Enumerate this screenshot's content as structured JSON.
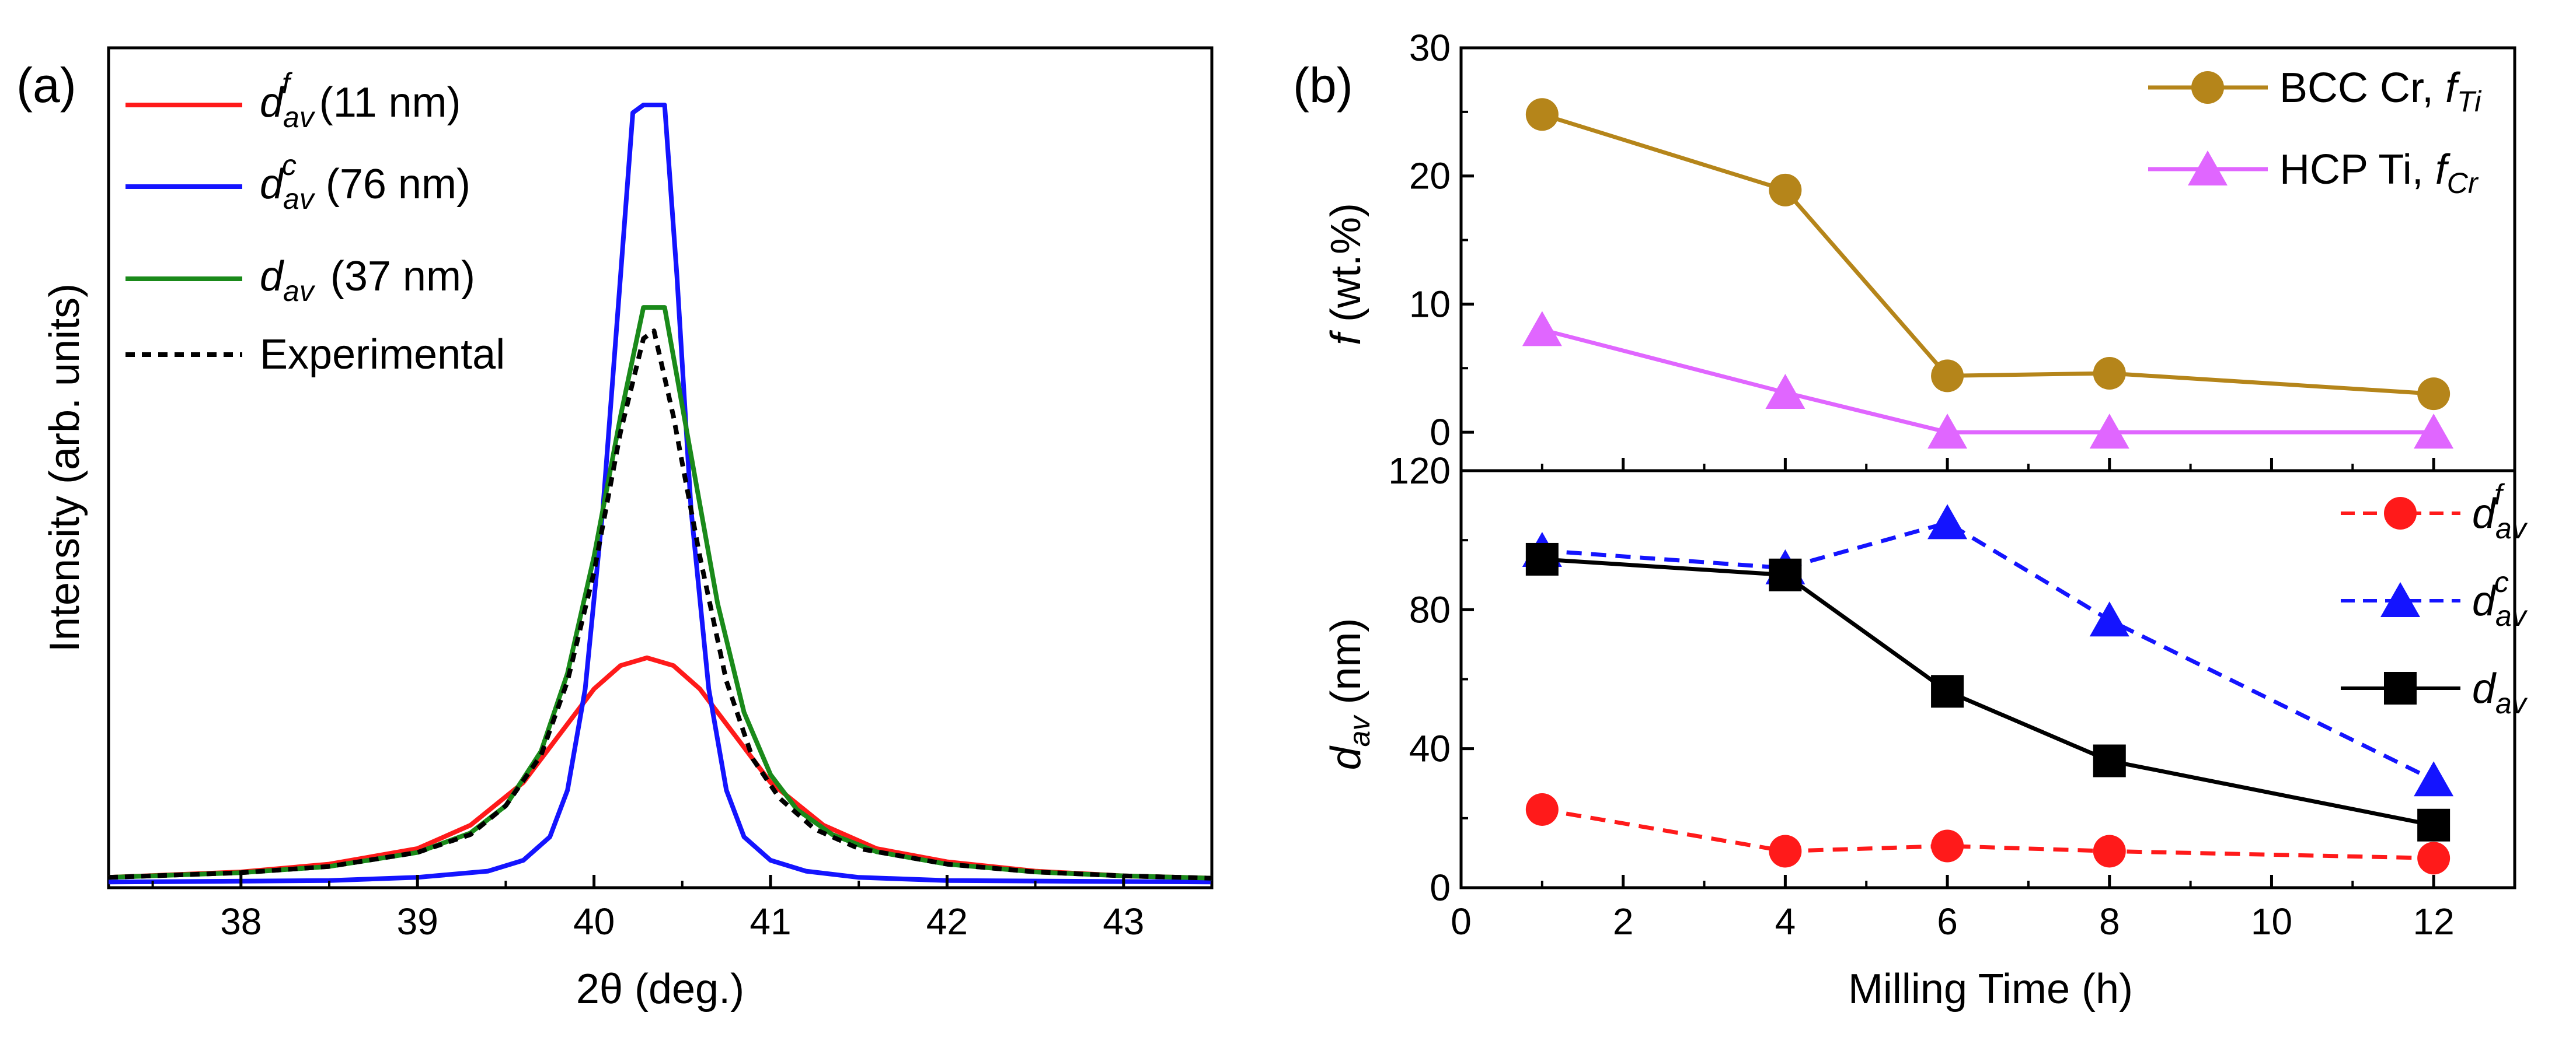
{
  "colors": {
    "red": "#ff1a1a",
    "blue": "#1414ff",
    "green": "#1a8a1a",
    "black": "#000000",
    "bcc": "#b5851a",
    "hcp": "#e066ff"
  },
  "chart_data": [
    {
      "panel_label": "(a)",
      "type": "line",
      "xlabel": "2θ (deg.)",
      "ylabel": "Intensity (arb. units)",
      "xlim": [
        37.25,
        43.5
      ],
      "ylim": [
        0,
        1.0
      ],
      "xticks": [
        38,
        39,
        40,
        41,
        42,
        43
      ],
      "xtick_labels": [
        "38",
        "39",
        "40",
        "41",
        "42",
        "43"
      ],
      "series": [
        {
          "name": "d_av^f (11 nm)",
          "main": "d",
          "sub": "av",
          "sup": "f",
          "suffix": " (11 nm)",
          "color": "red",
          "dash": false,
          "x": [
            37.25,
            38.0,
            38.5,
            39.0,
            39.3,
            39.6,
            39.8,
            40.0,
            40.15,
            40.3,
            40.45,
            40.6,
            40.8,
            41.0,
            41.3,
            41.6,
            42.0,
            42.5,
            43.0,
            43.5
          ],
          "y": [
            0.008,
            0.015,
            0.025,
            0.045,
            0.075,
            0.13,
            0.19,
            0.25,
            0.28,
            0.29,
            0.28,
            0.25,
            0.19,
            0.13,
            0.075,
            0.045,
            0.028,
            0.016,
            0.01,
            0.007
          ]
        },
        {
          "name": "d_av^c (76 nm)",
          "main": "d",
          "sub": "av",
          "sup": "c",
          "suffix": " (76 nm)",
          "color": "blue",
          "dash": false,
          "x": [
            37.25,
            38.5,
            39.0,
            39.4,
            39.6,
            39.75,
            39.85,
            39.95,
            40.05,
            40.15,
            40.22,
            40.28,
            40.4,
            40.47,
            40.55,
            40.65,
            40.75,
            40.85,
            41.0,
            41.2,
            41.5,
            42.0,
            43.5
          ],
          "y": [
            0.002,
            0.004,
            0.008,
            0.016,
            0.03,
            0.06,
            0.12,
            0.25,
            0.48,
            0.78,
            0.99,
            1.0,
            1.0,
            0.78,
            0.48,
            0.25,
            0.12,
            0.06,
            0.03,
            0.016,
            0.008,
            0.004,
            0.002
          ]
        },
        {
          "name": "d_av (37 nm)",
          "main": "d",
          "sub": "av",
          "sup": "",
          "suffix": " (37 nm)",
          "color": "green",
          "dash": false,
          "x": [
            37.25,
            38.0,
            38.5,
            39.0,
            39.3,
            39.5,
            39.7,
            39.85,
            40.0,
            40.15,
            40.28,
            40.4,
            40.55,
            40.7,
            40.85,
            41.0,
            41.15,
            41.35,
            41.6,
            42.0,
            42.5,
            43.0,
            43.5
          ],
          "y": [
            0.008,
            0.014,
            0.022,
            0.04,
            0.065,
            0.1,
            0.17,
            0.27,
            0.42,
            0.6,
            0.74,
            0.74,
            0.55,
            0.36,
            0.22,
            0.14,
            0.095,
            0.063,
            0.041,
            0.025,
            0.015,
            0.01,
            0.007
          ]
        },
        {
          "name": "Experimental",
          "main": "Experimental",
          "sub": "",
          "sup": "",
          "suffix": "",
          "color": "black",
          "dash": true,
          "x": [
            37.25,
            38.0,
            38.5,
            39.0,
            39.3,
            39.5,
            39.7,
            39.85,
            40.0,
            40.15,
            40.28,
            40.34,
            40.45,
            40.6,
            40.75,
            40.9,
            41.05,
            41.25,
            41.5,
            42.0,
            42.5,
            43.0,
            43.5
          ],
          "y": [
            0.008,
            0.014,
            0.022,
            0.04,
            0.063,
            0.1,
            0.165,
            0.26,
            0.4,
            0.58,
            0.7,
            0.71,
            0.6,
            0.42,
            0.26,
            0.16,
            0.11,
            0.07,
            0.045,
            0.025,
            0.015,
            0.01,
            0.007
          ]
        }
      ]
    },
    {
      "panel_label": "(b)",
      "type": "line",
      "xlabel": "Milling Time (h)",
      "ylabel_main": "f",
      "ylabel_rest": " (wt.%)",
      "xlim": [
        0,
        13
      ],
      "ylim": [
        -3,
        30
      ],
      "yticks": [
        0,
        10,
        20,
        30
      ],
      "ytick_labels": [
        "0",
        "10",
        "20",
        "30"
      ],
      "series": [
        {
          "name": "BCC Cr, f_Ti",
          "label_text": "BCC Cr, ",
          "label_main": "f",
          "label_sub": "Ti",
          "color": "bcc",
          "marker": "circle",
          "x": [
            1,
            4,
            6,
            8,
            12
          ],
          "y": [
            24.8,
            18.9,
            4.4,
            4.6,
            3.0
          ]
        },
        {
          "name": "HCP Ti, f_Cr",
          "label_text": "HCP Ti, ",
          "label_main": "f",
          "label_sub": "Cr",
          "color": "hcp",
          "marker": "triangle",
          "x": [
            1,
            4,
            6,
            8,
            12
          ],
          "y": [
            8.0,
            3.1,
            0.0,
            0.0,
            0.0
          ]
        }
      ]
    },
    {
      "type": "line",
      "xlabel": "Milling Time (h)",
      "ylabel_main": "d",
      "ylabel_sub": "av",
      "ylabel_rest": " (nm)",
      "xlim": [
        0,
        13
      ],
      "ylim": [
        0,
        120
      ],
      "xticks": [
        0,
        2,
        4,
        6,
        8,
        10,
        12
      ],
      "xtick_labels": [
        "0",
        "2",
        "4",
        "6",
        "8",
        "10",
        "12"
      ],
      "yticks": [
        0,
        40,
        80,
        120
      ],
      "ytick_labels": [
        "0",
        "40",
        "80",
        "120"
      ],
      "series": [
        {
          "name": "d_av^f",
          "main": "d",
          "sub": "av",
          "sup": "f",
          "color": "red",
          "marker": "circle",
          "dash": true,
          "x": [
            1,
            4,
            6,
            8,
            12
          ],
          "y": [
            22.5,
            10.5,
            12.0,
            10.5,
            8.5
          ]
        },
        {
          "name": "d_av^c",
          "main": "d",
          "sub": "av",
          "sup": "c",
          "color": "blue",
          "marker": "triangle",
          "dash": true,
          "x": [
            1,
            4,
            6,
            8,
            12
          ],
          "y": [
            97,
            92,
            105,
            77,
            31
          ]
        },
        {
          "name": "d_av",
          "main": "d",
          "sub": "av",
          "sup": "",
          "color": "black",
          "marker": "square",
          "dash": false,
          "x": [
            1,
            4,
            6,
            8,
            12
          ],
          "y": [
            94.5,
            90,
            56.5,
            36.5,
            18
          ]
        }
      ]
    }
  ]
}
